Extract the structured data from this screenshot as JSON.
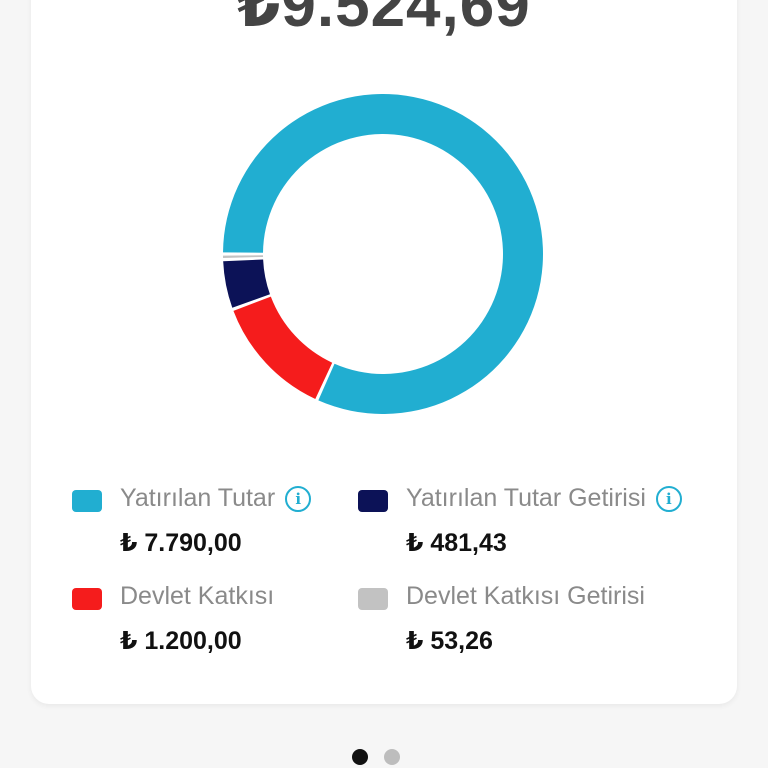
{
  "total": "₺9.524,69",
  "chart_data": {
    "type": "pie",
    "donut": true,
    "categories": [
      "Yatırılan Tutar",
      "Devlet Katkısı",
      "Yatırılan Tutar Getirisi",
      "Devlet Katkısı Getirisi"
    ],
    "values": [
      7790.0,
      1200.0,
      481.43,
      53.26
    ],
    "colors": [
      "#21aed1",
      "#f51c1c",
      "#0c1257",
      "#c2c2c2"
    ]
  },
  "legend": [
    {
      "label": "Yatırılan Tutar",
      "value": "₺ 7.790,00",
      "color": "#21aed1",
      "info": true,
      "icon": "info-icon"
    },
    {
      "label": "Yatırılan Tutar Getirisi",
      "value": "₺ 481,43",
      "color": "#0c1257",
      "info": true,
      "icon": "info-icon"
    },
    {
      "label": "Devlet Katkısı",
      "value": "₺ 1.200,00",
      "color": "#f51c1c",
      "info": false
    },
    {
      "label": "Devlet Katkısı Getirisi",
      "value": "₺ 53,26",
      "color": "#c2c2c2",
      "info": false
    }
  ],
  "info_glyph": "i",
  "pager": {
    "count": 2,
    "active": 0,
    "active_color": "#111111",
    "inactive_color": "#bdbdbd"
  }
}
